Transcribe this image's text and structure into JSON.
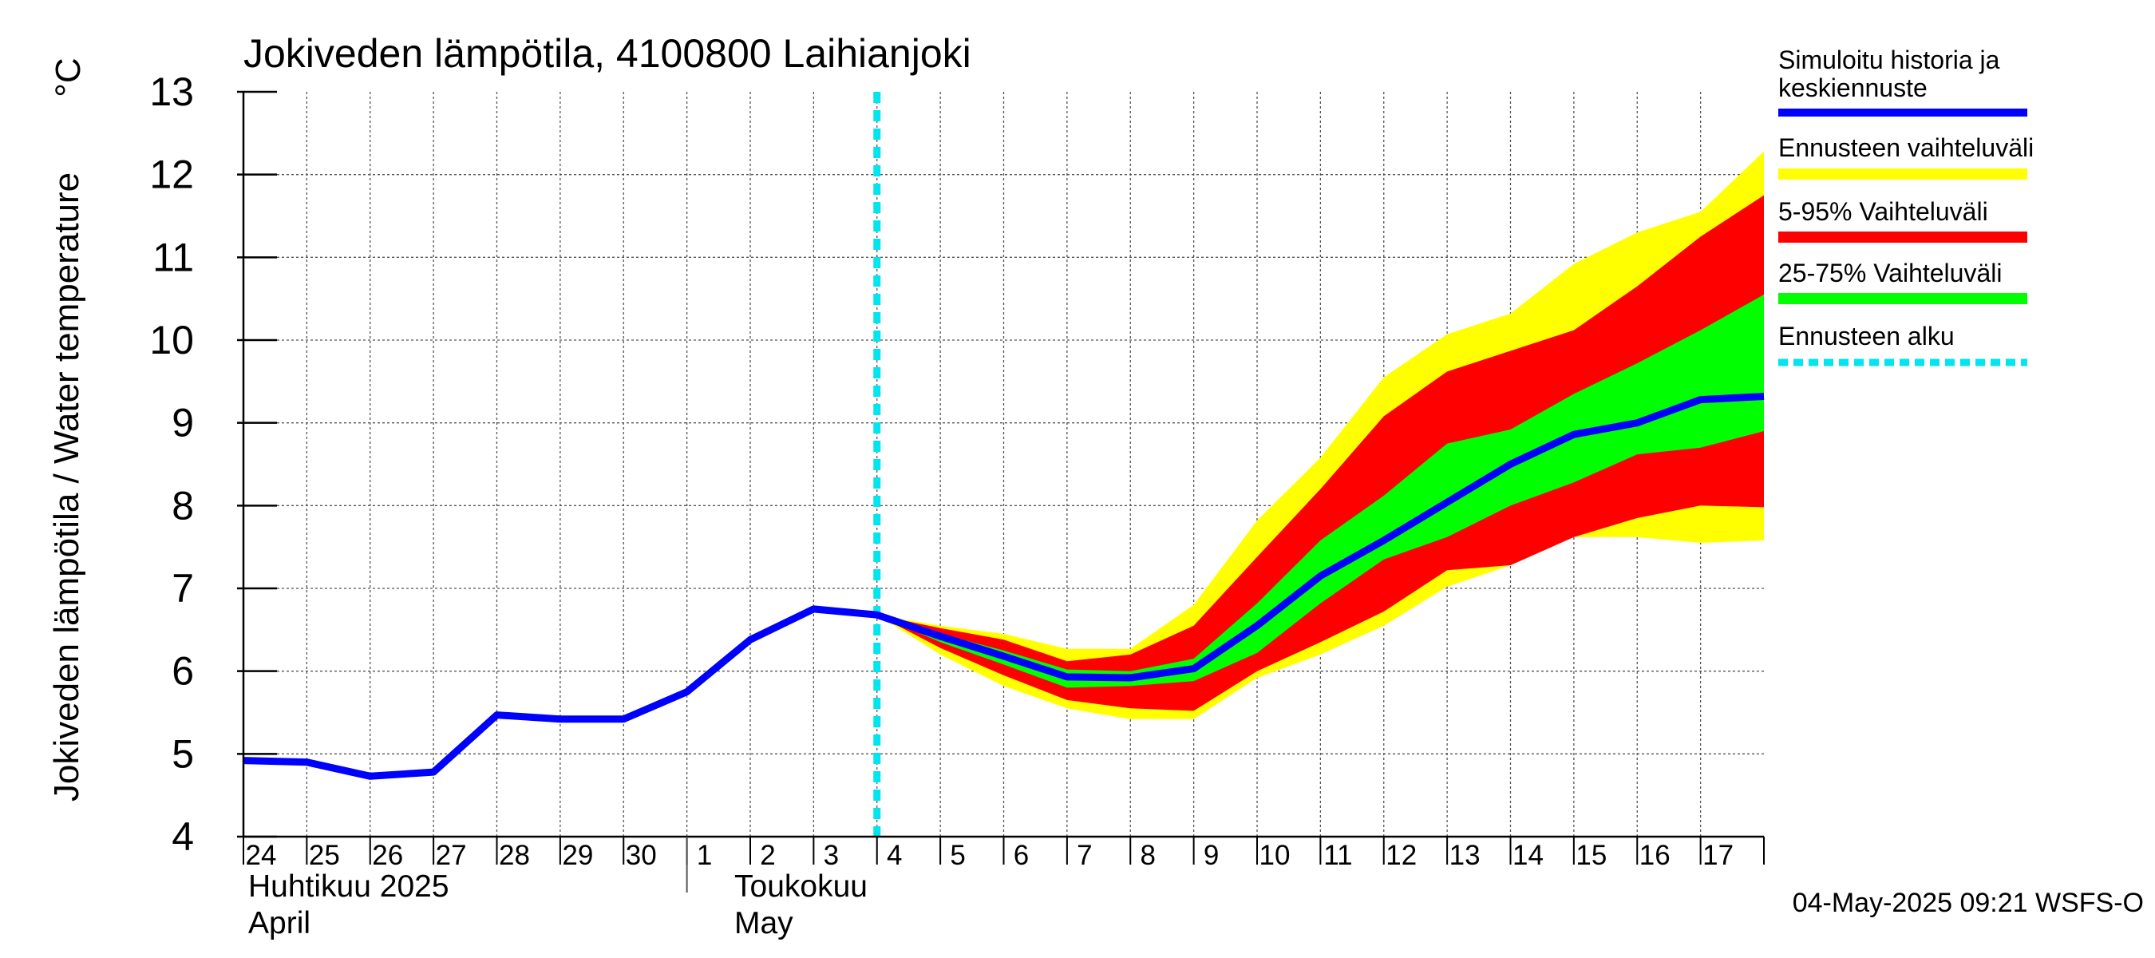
{
  "chart_data": {
    "type": "area",
    "title": "Jokiveden lämpötila, 4100800 Laihianjoki",
    "ylabel": "Jokiveden lämpötila / Water temperature",
    "yunit": "°C",
    "ylim": [
      4,
      13
    ],
    "yticks": [
      4,
      5,
      6,
      7,
      8,
      9,
      10,
      11,
      12,
      13
    ],
    "grid": true,
    "x_start_date": "2025-04-24",
    "x_end_date": "2025-05-18",
    "x_tick_labels": [
      "24",
      "25",
      "26",
      "27",
      "28",
      "29",
      "30",
      "1",
      "2",
      "3",
      "4",
      "5",
      "6",
      "7",
      "8",
      "9",
      "10",
      "11",
      "12",
      "13",
      "14",
      "15",
      "16",
      "17"
    ],
    "month_labels": [
      {
        "fi": "Huhtikuu  2025",
        "en": "April"
      },
      {
        "fi": "Toukokuu",
        "en": "May"
      }
    ],
    "forecast_start": "2025-05-04",
    "x": [
      "2025-04-24",
      "2025-04-25",
      "2025-04-26",
      "2025-04-27",
      "2025-04-28",
      "2025-04-29",
      "2025-04-30",
      "2025-05-01",
      "2025-05-02",
      "2025-05-03",
      "2025-05-04",
      "2025-05-05",
      "2025-05-06",
      "2025-05-07",
      "2025-05-08",
      "2025-05-09",
      "2025-05-10",
      "2025-05-11",
      "2025-05-12",
      "2025-05-13",
      "2025-05-14",
      "2025-05-15",
      "2025-05-16",
      "2025-05-17",
      "2025-05-18"
    ],
    "series": [
      {
        "name": "Simuloitu historia ja keskiennuste",
        "color": "#0000ff",
        "values": [
          4.92,
          4.9,
          4.73,
          4.78,
          5.47,
          5.42,
          5.42,
          5.75,
          6.38,
          6.75,
          6.68,
          6.42,
          6.18,
          5.93,
          5.92,
          6.03,
          6.55,
          7.15,
          7.58,
          8.04,
          8.5,
          8.86,
          9.0,
          9.28,
          9.32
        ]
      },
      {
        "name": "Ennusteen vaihteluväli",
        "color": "#ffff00",
        "lower": [
          null,
          null,
          null,
          null,
          null,
          null,
          null,
          null,
          null,
          null,
          6.68,
          6.2,
          5.82,
          5.55,
          5.42,
          5.42,
          5.92,
          6.2,
          6.55,
          7.02,
          7.28,
          7.62,
          7.62,
          7.55,
          7.58
        ],
        "upper": [
          null,
          null,
          null,
          null,
          null,
          null,
          null,
          null,
          null,
          null,
          6.68,
          6.55,
          6.45,
          6.27,
          6.27,
          6.8,
          7.82,
          8.58,
          9.55,
          10.07,
          10.32,
          10.92,
          11.3,
          11.55,
          12.28
        ]
      },
      {
        "name": "5-95% Vaihteluväli",
        "color": "#ff0000",
        "lower": [
          null,
          null,
          null,
          null,
          null,
          null,
          null,
          null,
          null,
          null,
          6.68,
          6.28,
          5.95,
          5.65,
          5.55,
          5.52,
          6.0,
          6.35,
          6.72,
          7.22,
          7.28,
          7.62,
          7.85,
          8.0,
          7.98
        ],
        "upper": [
          null,
          null,
          null,
          null,
          null,
          null,
          null,
          null,
          null,
          null,
          6.68,
          6.52,
          6.38,
          6.12,
          6.2,
          6.55,
          7.38,
          8.2,
          9.08,
          9.62,
          9.87,
          10.12,
          10.65,
          11.25,
          11.75
        ]
      },
      {
        "name": "25-75% Vaihteluväli",
        "color": "#00ff00",
        "lower": [
          null,
          null,
          null,
          null,
          null,
          null,
          null,
          null,
          null,
          null,
          6.68,
          6.35,
          6.08,
          5.8,
          5.82,
          5.88,
          6.22,
          6.82,
          7.35,
          7.62,
          8.0,
          8.28,
          8.62,
          8.7,
          8.9
        ],
        "upper": [
          null,
          null,
          null,
          null,
          null,
          null,
          null,
          null,
          null,
          null,
          6.68,
          6.45,
          6.25,
          6.02,
          6.0,
          6.15,
          6.82,
          7.58,
          8.12,
          8.75,
          8.92,
          9.35,
          9.72,
          10.12,
          10.55
        ]
      }
    ],
    "legend": [
      {
        "label": "Simuloitu historia ja keskiennuste",
        "color": "#0000ff",
        "style": "line"
      },
      {
        "label": "Ennusteen vaihteluväli",
        "color": "#ffff00",
        "style": "band"
      },
      {
        "label": "5-95% Vaihteluväli",
        "color": "#ff0000",
        "style": "band"
      },
      {
        "label": "25-75% Vaihteluväli",
        "color": "#00ff00",
        "style": "band"
      },
      {
        "label": "Ennusteen alku",
        "color": "#00e5ee",
        "style": "dashed"
      }
    ],
    "legend_position": "right",
    "footer": "04-May-2025 09:21 WSFS-O"
  }
}
